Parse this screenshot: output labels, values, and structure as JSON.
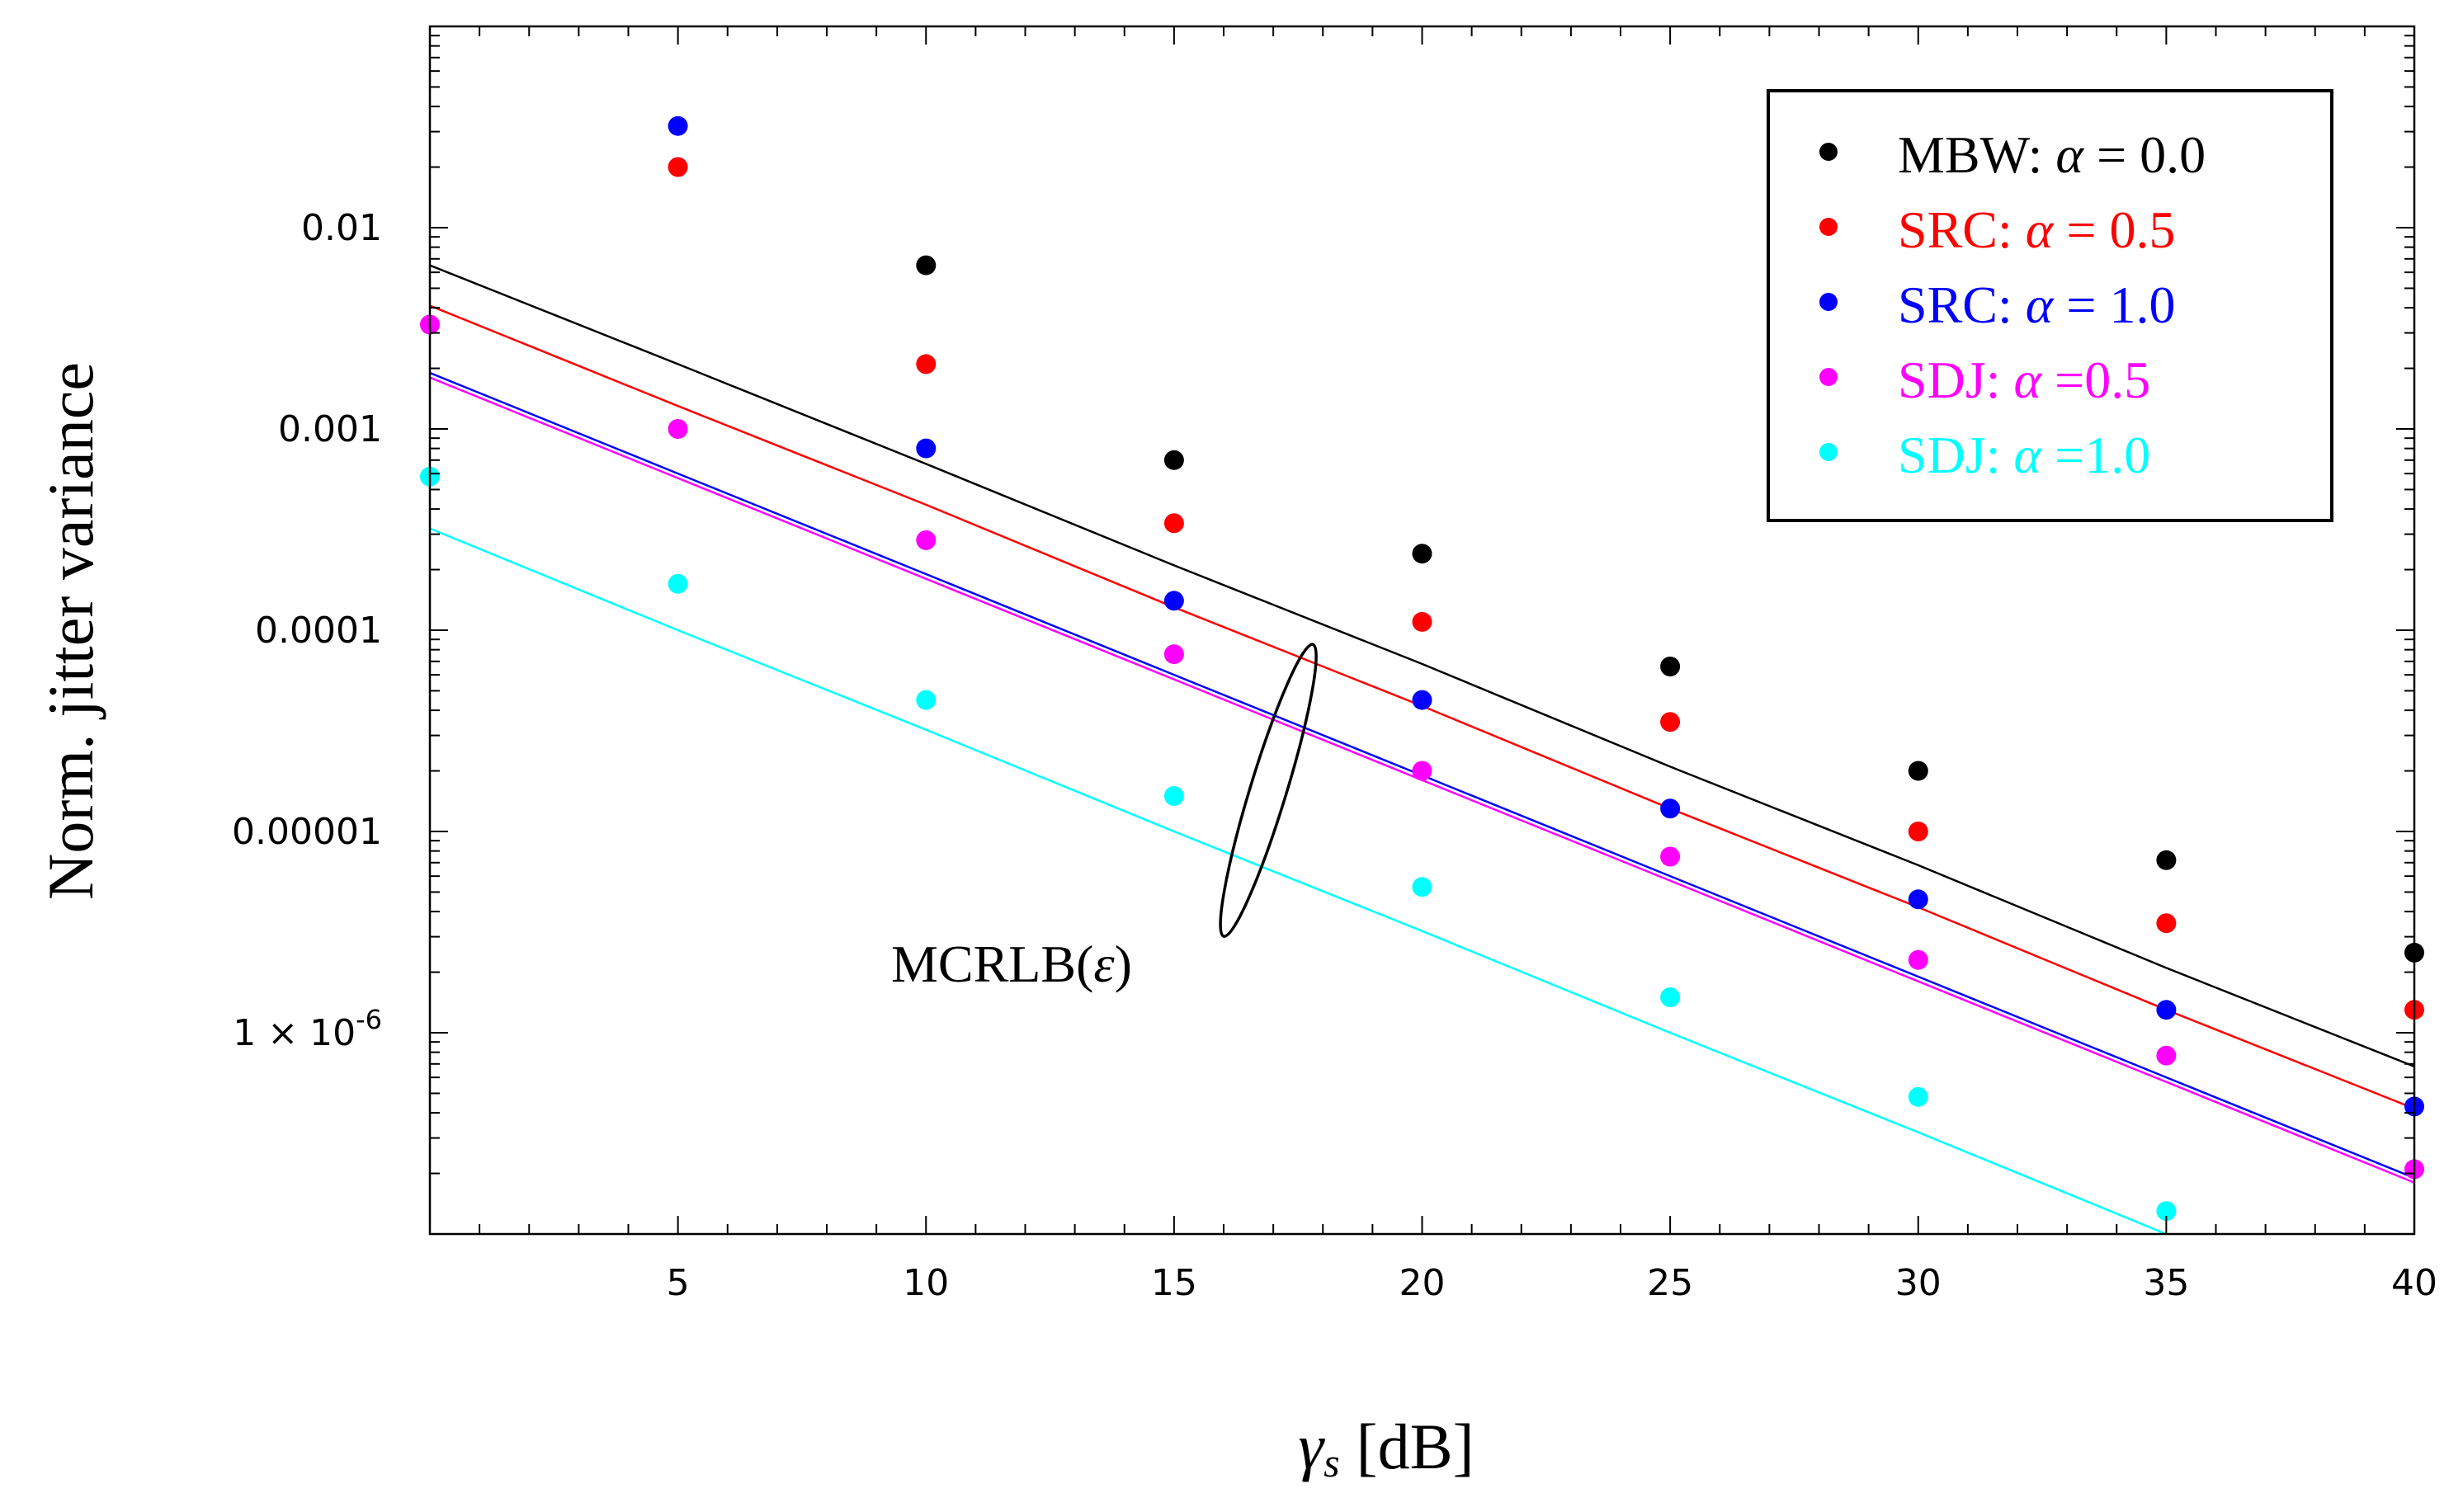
{
  "chart_data": {
    "type": "scatter",
    "xlabel_symbol": "γ",
    "xlabel_subscript": "s",
    "xlabel_unit": "[dB]",
    "ylabel": "Norm. jitter variance",
    "xlim": [
      0,
      40
    ],
    "ylim": [
      1e-07,
      0.1
    ],
    "yscale": "log",
    "x_ticks": [
      5,
      10,
      15,
      20,
      25,
      30,
      35,
      40
    ],
    "y_ticks": [
      {
        "value": 0.01,
        "label": "0.01"
      },
      {
        "value": 0.001,
        "label": "0.001"
      },
      {
        "value": 0.0001,
        "label": "0.0001"
      },
      {
        "value": 1e-05,
        "label": "0.00001"
      },
      {
        "value": 1e-06,
        "label": "1 × 10",
        "exp": "-6"
      }
    ],
    "annotation": {
      "text": "MCRLB(",
      "symbol": "ε",
      "close": ")",
      "x": 17,
      "y": 4e-06
    },
    "legend_position": "top-right",
    "series": [
      {
        "name": "MBW:",
        "alpha_value": "= 0.0",
        "color": "#000000",
        "points": [
          [
            10,
            0.0065
          ],
          [
            15,
            0.0007
          ],
          [
            20,
            0.00024
          ],
          [
            25,
            6.6e-05
          ],
          [
            30,
            2e-05
          ],
          [
            35,
            7.2e-06
          ],
          [
            40,
            2.5e-06
          ]
        ],
        "bound": [
          [
            0,
            0.0065
          ],
          [
            5,
            0.0021
          ],
          [
            10,
            0.00067
          ],
          [
            15,
            0.00021
          ],
          [
            20,
            6.8e-05
          ],
          [
            25,
            2.1e-05
          ],
          [
            30,
            6.8e-06
          ],
          [
            35,
            2.1e-06
          ],
          [
            40,
            6.8e-07
          ]
        ]
      },
      {
        "name": "SRC:",
        "alpha_value": "= 0.5",
        "color": "#ff0000",
        "points": [
          [
            5,
            0.02
          ],
          [
            10,
            0.0021
          ],
          [
            15,
            0.00034
          ],
          [
            20,
            0.00011
          ],
          [
            25,
            3.5e-05
          ],
          [
            30,
            1e-05
          ],
          [
            35,
            3.5e-06
          ],
          [
            40,
            1.3e-06
          ]
        ],
        "bound": [
          [
            0,
            0.0041
          ],
          [
            5,
            0.0013
          ],
          [
            10,
            0.00042
          ],
          [
            15,
            0.00013
          ],
          [
            20,
            4.2e-05
          ],
          [
            25,
            1.3e-05
          ],
          [
            30,
            4.2e-06
          ],
          [
            35,
            1.3e-06
          ],
          [
            40,
            4.2e-07
          ]
        ]
      },
      {
        "name": "SRC:",
        "alpha_value": "= 1.0",
        "color": "#0000ff",
        "points": [
          [
            5,
            0.032
          ],
          [
            10,
            0.0008
          ],
          [
            15,
            0.00014
          ],
          [
            20,
            4.5e-05
          ],
          [
            25,
            1.3e-05
          ],
          [
            30,
            4.6e-06
          ],
          [
            35,
            1.3e-06
          ],
          [
            40,
            4.3e-07
          ]
        ],
        "bound": [
          [
            0,
            0.0019
          ],
          [
            5,
            0.0006
          ],
          [
            10,
            0.00019
          ],
          [
            15,
            6e-05
          ],
          [
            20,
            1.9e-05
          ],
          [
            25,
            6e-06
          ],
          [
            30,
            1.9e-06
          ],
          [
            35,
            6e-07
          ],
          [
            40,
            1.9e-07
          ]
        ]
      },
      {
        "name": "SDJ:",
        "alpha_value": "=0.5",
        "color": "#ff00ff",
        "points": [
          [
            0,
            0.0033
          ],
          [
            5,
            0.001
          ],
          [
            10,
            0.00028
          ],
          [
            15,
            7.6e-05
          ],
          [
            20,
            2e-05
          ],
          [
            25,
            7.5e-06
          ],
          [
            30,
            2.3e-06
          ],
          [
            35,
            7.7e-07
          ],
          [
            40,
            2.1e-07
          ]
        ],
        "bound": [
          [
            0,
            0.0018
          ],
          [
            5,
            0.00057
          ],
          [
            10,
            0.00018
          ],
          [
            15,
            5.7e-05
          ],
          [
            20,
            1.8e-05
          ],
          [
            25,
            5.7e-06
          ],
          [
            30,
            1.8e-06
          ],
          [
            35,
            5.7e-07
          ],
          [
            40,
            1.8e-07
          ]
        ]
      },
      {
        "name": "SDJ:",
        "alpha_value": "=1.0",
        "color": "#00ffff",
        "points": [
          [
            0,
            0.00058
          ],
          [
            5,
            0.00017
          ],
          [
            10,
            4.5e-05
          ],
          [
            15,
            1.5e-05
          ],
          [
            20,
            5.3e-06
          ],
          [
            25,
            1.5e-06
          ],
          [
            30,
            4.8e-07
          ],
          [
            35,
            1.3e-07
          ]
        ],
        "bound": [
          [
            0,
            0.00032
          ],
          [
            5,
            0.0001
          ],
          [
            10,
            3.2e-05
          ],
          [
            15,
            1e-05
          ],
          [
            20,
            3.2e-06
          ],
          [
            25,
            1e-06
          ],
          [
            30,
            3.2e-07
          ],
          [
            35,
            1e-07
          ],
          [
            40,
            3.2e-08
          ]
        ]
      }
    ]
  },
  "legend_alpha_symbol": "α"
}
